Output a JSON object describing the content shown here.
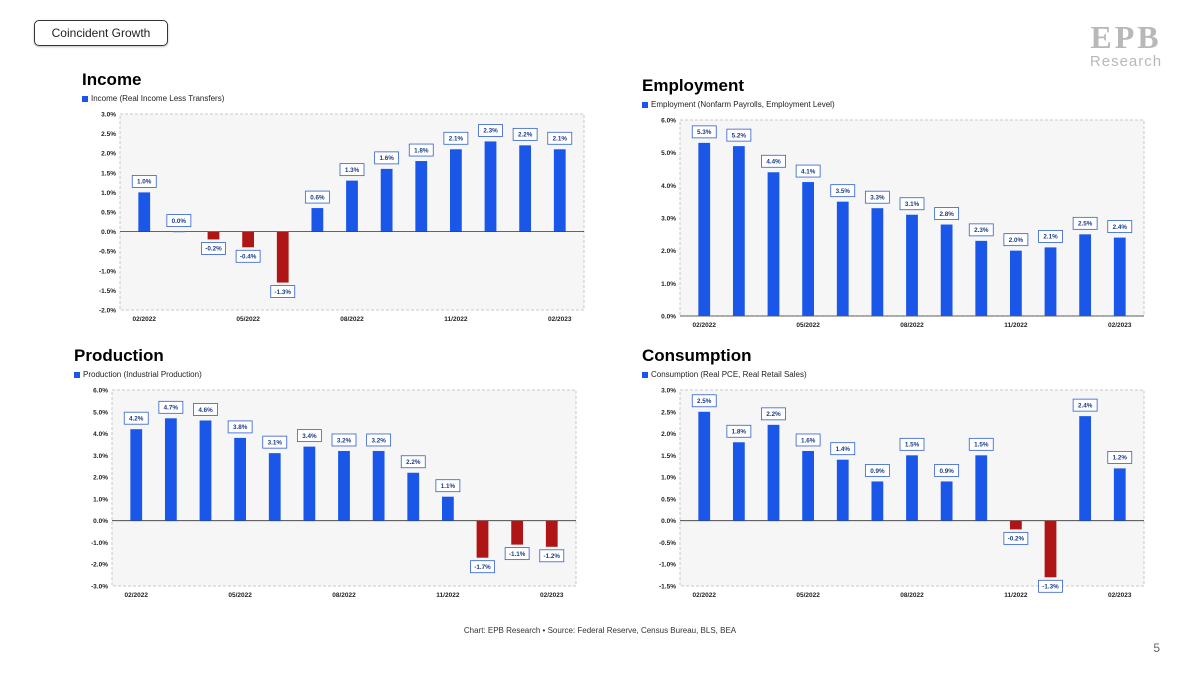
{
  "header": {
    "tag_label": "Coincident Growth",
    "logo_mark": "EPB",
    "logo_text": "Research"
  },
  "footer": {
    "source": "Chart: EPB Research •  Source: Federal Reserve, Census Bureau, BLS, BEA",
    "page_number": "5"
  },
  "colors": {
    "positive": "#1a56e8",
    "negative": "#b01515",
    "label_border": "#2f5fd0",
    "plot_bg": "#f6f6f6"
  },
  "chart_data": [
    {
      "type": "bar",
      "title": "Income",
      "legend": "Income (Real Income Less Transfers)",
      "ylim": [
        -2.0,
        3.0
      ],
      "yticks": [
        "3.0%",
        "2.5%",
        "2.0%",
        "1.5%",
        "1.0%",
        "0.5%",
        "0.0%",
        "-0.5%",
        "-1.0%",
        "-1.5%",
        "-2.0%"
      ],
      "xticks": [
        "02/2022",
        "05/2022",
        "08/2022",
        "11/2022",
        "02/2023"
      ],
      "values": [
        1.0,
        0.0,
        -0.2,
        -0.4,
        -1.3,
        0.6,
        1.3,
        1.6,
        1.8,
        2.1,
        2.3,
        2.2,
        2.1
      ],
      "labels": [
        "1.0%",
        "0.0%",
        "-0.2%",
        "-0.4%",
        "-1.3%",
        "0.6%",
        "1.3%",
        "1.6%",
        "1.8%",
        "2.1%",
        "2.3%",
        "2.2%",
        "2.1%"
      ]
    },
    {
      "type": "bar",
      "title": "Employment",
      "legend": "Employment (Nonfarm Payrolls, Employment Level)",
      "ylim": [
        0.0,
        6.0
      ],
      "yticks": [
        "6.0%",
        "5.0%",
        "4.0%",
        "3.0%",
        "2.0%",
        "1.0%",
        "0.0%"
      ],
      "xticks": [
        "02/2022",
        "05/2022",
        "08/2022",
        "11/2022",
        "02/2023"
      ],
      "values": [
        5.3,
        5.2,
        4.4,
        4.1,
        3.5,
        3.3,
        3.1,
        2.8,
        2.3,
        2.0,
        2.1,
        2.5,
        2.4
      ],
      "labels": [
        "5.3%",
        "5.2%",
        "4.4%",
        "4.1%",
        "3.5%",
        "3.3%",
        "3.1%",
        "2.8%",
        "2.3%",
        "2.0%",
        "2.1%",
        "2.5%",
        "2.4%"
      ]
    },
    {
      "type": "bar",
      "title": "Production",
      "legend": "Production (Industrial Production)",
      "ylim": [
        -3.0,
        6.0
      ],
      "yticks": [
        "6.0%",
        "5.0%",
        "4.0%",
        "3.0%",
        "2.0%",
        "1.0%",
        "0.0%",
        "-1.0%",
        "-2.0%",
        "-3.0%"
      ],
      "xticks": [
        "02/2022",
        "05/2022",
        "08/2022",
        "11/2022",
        "02/2023"
      ],
      "values": [
        4.2,
        4.7,
        4.6,
        3.8,
        3.1,
        3.4,
        3.2,
        3.2,
        2.2,
        1.1,
        -1.7,
        -1.1,
        -1.2
      ],
      "labels": [
        "4.2%",
        "4.7%",
        "4.6%",
        "3.8%",
        "3.1%",
        "3.4%",
        "3.2%",
        "3.2%",
        "2.2%",
        "1.1%",
        "-1.7%",
        "-1.1%",
        "-1.2%"
      ]
    },
    {
      "type": "bar",
      "title": "Consumption",
      "legend": "Consumption (Real PCE, Real Retail Sales)",
      "ylim": [
        -1.5,
        3.0
      ],
      "yticks": [
        "3.0%",
        "2.5%",
        "2.0%",
        "1.5%",
        "1.0%",
        "0.5%",
        "0.0%",
        "-0.5%",
        "-1.0%",
        "-1.5%"
      ],
      "xticks": [
        "02/2022",
        "05/2022",
        "08/2022",
        "11/2022",
        "02/2023"
      ],
      "values": [
        2.5,
        1.8,
        2.2,
        1.6,
        1.4,
        0.9,
        1.5,
        0.9,
        1.5,
        -0.2,
        -1.3,
        2.4,
        1.2
      ],
      "labels": [
        "2.5%",
        "1.8%",
        "2.2%",
        "1.6%",
        "1.4%",
        "0.9%",
        "1.5%",
        "0.9%",
        "1.5%",
        "-0.2%",
        "-1.3%",
        "2.4%",
        "1.2%"
      ]
    }
  ]
}
